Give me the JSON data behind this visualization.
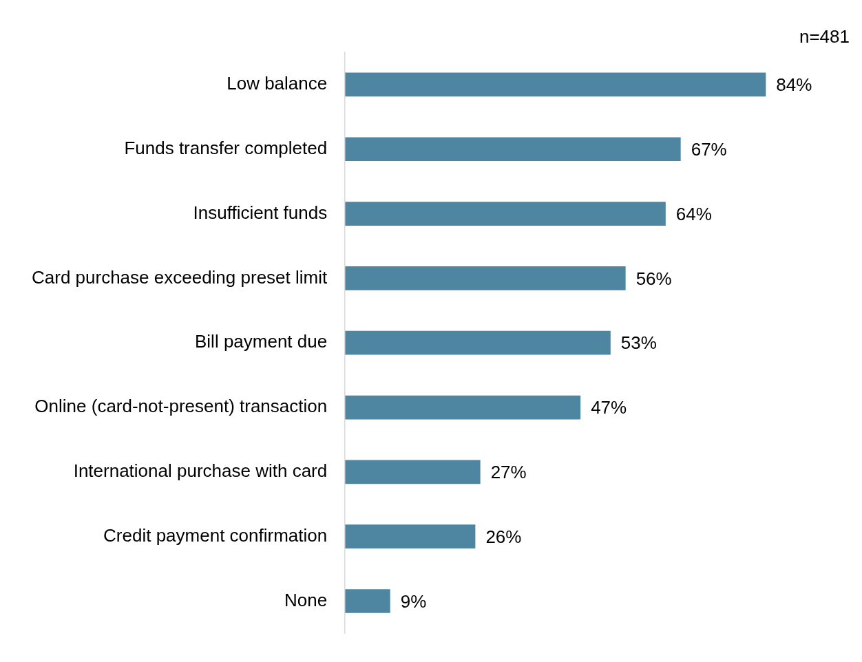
{
  "chart_data": {
    "type": "bar",
    "orientation": "horizontal",
    "categories": [
      "Low balance",
      "Funds transfer completed",
      "Insufficient funds",
      "Card purchase exceeding preset limit",
      "Bill payment due",
      "Online (card-not-present) transaction",
      "International purchase with card",
      "Credit payment confirmation",
      "None"
    ],
    "values": [
      84,
      67,
      64,
      56,
      53,
      47,
      27,
      26,
      9
    ],
    "value_labels": [
      "84%",
      "67%",
      "64%",
      "56%",
      "53%",
      "47%",
      "27%",
      "26%",
      "9%"
    ],
    "color": "#4e86a2",
    "annotations": [
      "n=481"
    ],
    "tick_labels": "y"
  }
}
